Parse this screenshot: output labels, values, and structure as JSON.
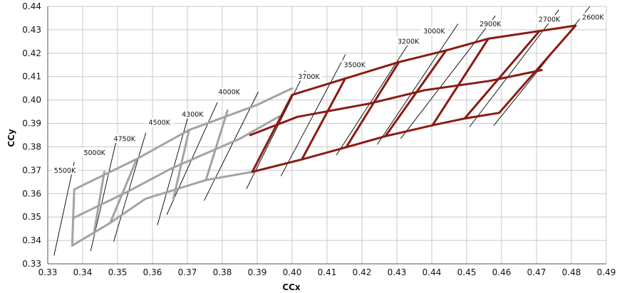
{
  "chart_data": {
    "type": "line",
    "title": "",
    "xlabel": "CCx",
    "ylabel": "CCy",
    "xlim": [
      0.33,
      0.49
    ],
    "ylim": [
      0.33,
      0.44
    ],
    "x_ticks": [
      "0.33",
      "0.34",
      "0.35",
      "0.36",
      "0.37",
      "0.38",
      "0.39",
      "0.40",
      "0.41",
      "0.42",
      "0.43",
      "0.44",
      "0.45",
      "0.46",
      "0.47",
      "0.48",
      "0.49"
    ],
    "y_ticks": [
      "0.33",
      "0.34",
      "0.35",
      "0.36",
      "0.37",
      "0.38",
      "0.39",
      "0.40",
      "0.41",
      "0.42",
      "0.43",
      "0.44"
    ],
    "grid": true,
    "colors": {
      "gray": "#a3a3a3",
      "red": "#8b1a14",
      "line": "#000000",
      "grid": "#c8c8c8"
    },
    "isotherms": [
      {
        "label": "5500K",
        "x": [
          0.3318,
          0.3376
        ],
        "y": [
          0.3335,
          0.3735
        ]
      },
      {
        "label": "5000K",
        "x": [
          0.3423,
          0.3496
        ],
        "y": [
          0.3355,
          0.3825
        ]
      },
      {
        "label": "4750K",
        "x": [
          0.3489,
          0.3581
        ],
        "y": [
          0.3395,
          0.386
        ]
      },
      {
        "label": "4500K",
        "x": [
          0.3614,
          0.3707
        ],
        "y": [
          0.3465,
          0.3955
        ]
      },
      {
        "label": "4300K",
        "x": [
          0.3641,
          0.3786
        ],
        "y": [
          0.351,
          0.399
        ]
      },
      {
        "label": "4000K",
        "x": [
          0.3748,
          0.3903
        ],
        "y": [
          0.357,
          0.4035
        ]
      },
      {
        "label": "3700K",
        "x": [
          0.3869,
          0.4038
        ],
        "y": [
          0.362,
          0.4125
        ]
      },
      {
        "label": "3500K",
        "x": [
          0.3968,
          0.4153
        ],
        "y": [
          0.3675,
          0.4195
        ]
      },
      {
        "label": "3200K",
        "x": [
          0.4127,
          0.4342
        ],
        "y": [
          0.3765,
          0.426
        ]
      },
      {
        "label": "3000K",
        "x": [
          0.4244,
          0.4475
        ],
        "y": [
          0.381,
          0.4325
        ]
      },
      {
        "label": "2900K",
        "x": [
          0.4311,
          0.4582
        ],
        "y": [
          0.3835,
          0.436
        ]
      },
      {
        "label": "2700K",
        "x": [
          0.4508,
          0.4764
        ],
        "y": [
          0.3885,
          0.4385
        ]
      },
      {
        "label": "2600K",
        "x": [
          0.4577,
          0.4853
        ],
        "y": [
          0.389,
          0.44
        ]
      }
    ],
    "label_points": [
      {
        "label": "5500K",
        "x": 0.3349,
        "y": 0.3694
      },
      {
        "label": "5000K",
        "x": 0.3434,
        "y": 0.3769
      },
      {
        "label": "4750K",
        "x": 0.352,
        "y": 0.3829
      },
      {
        "label": "4500K",
        "x": 0.362,
        "y": 0.3899
      },
      {
        "label": "4300K",
        "x": 0.3715,
        "y": 0.3934
      },
      {
        "label": "4000K",
        "x": 0.382,
        "y": 0.4029
      },
      {
        "label": "3700K",
        "x": 0.4048,
        "y": 0.4095
      },
      {
        "label": "3500K",
        "x": 0.4179,
        "y": 0.4145
      },
      {
        "label": "3200K",
        "x": 0.4333,
        "y": 0.4245
      },
      {
        "label": "3000K",
        "x": 0.4407,
        "y": 0.4289
      },
      {
        "label": "2900K",
        "x": 0.4568,
        "y": 0.4319
      },
      {
        "label": "2700K",
        "x": 0.4737,
        "y": 0.4339
      },
      {
        "label": "2600K",
        "x": 0.4862,
        "y": 0.4349
      }
    ],
    "series": [
      {
        "color": "gray",
        "lines": [
          {
            "x": [
              0.3376,
              0.3555,
              0.3705,
              0.3898,
              0.4
            ],
            "y": [
              0.3618,
              0.3748,
              0.3872,
              0.3978,
              0.405
            ]
          },
          {
            "x": [
              0.3372,
              0.3525,
              0.3655,
              0.3852,
              0.3963
            ],
            "y": [
              0.3495,
              0.3605,
              0.3708,
              0.3836,
              0.393
            ]
          },
          {
            "x": [
              0.337,
              0.3479,
              0.358,
              0.3753,
              0.3886
            ],
            "y": [
              0.3378,
              0.3475,
              0.3578,
              0.3658,
              0.3693
            ]
          },
          {
            "x": [
              0.3376,
              0.337
            ],
            "y": [
              0.3618,
              0.3378
            ]
          },
          {
            "x": [
              0.3462,
              0.3432
            ],
            "y": [
              0.3693,
              0.3428
            ]
          },
          {
            "x": [
              0.3555,
              0.3479
            ],
            "y": [
              0.3748,
              0.3475
            ]
          },
          {
            "x": [
              0.3705,
              0.366
            ],
            "y": [
              0.3872,
              0.3578
            ]
          },
          {
            "x": [
              0.3815,
              0.3753
            ],
            "y": [
              0.3955,
              0.3658
            ]
          }
        ]
      },
      {
        "color": "red",
        "lines": [
          {
            "x": [
              0.4,
              0.4152,
              0.4306,
              0.4441,
              0.4562,
              0.4812
            ],
            "y": [
              0.4022,
              0.4092,
              0.4162,
              0.4212,
              0.4262,
              0.4318
            ]
          },
          {
            "x": [
              0.388,
              0.4015,
              0.4222,
              0.438,
              0.4567,
              0.4715
            ],
            "y": [
              0.385,
              0.3928,
              0.3985,
              0.4042,
              0.4082,
              0.4128
            ]
          },
          {
            "x": [
              0.3886,
              0.4028,
              0.4155,
              0.4267,
              0.4402,
              0.4494,
              0.4593
            ],
            "y": [
              0.3693,
              0.3746,
              0.3798,
              0.3845,
              0.3892,
              0.3921,
              0.3945
            ]
          },
          {
            "x": [
              0.4,
              0.3886
            ],
            "y": [
              0.4022,
              0.3693
            ]
          },
          {
            "x": [
              0.4152,
              0.4028
            ],
            "y": [
              0.4092,
              0.3746
            ]
          },
          {
            "x": [
              0.4306,
              0.4155
            ],
            "y": [
              0.4162,
              0.3798
            ]
          },
          {
            "x": [
              0.4441,
              0.4267
            ],
            "y": [
              0.4212,
              0.3845
            ]
          },
          {
            "x": [
              0.4562,
              0.4402
            ],
            "y": [
              0.4262,
              0.3892
            ]
          },
          {
            "x": [
              0.4706,
              0.4494
            ],
            "y": [
              0.429,
              0.3921
            ]
          },
          {
            "x": [
              0.4812,
              0.4593
            ],
            "y": [
              0.4318,
              0.3945
            ]
          }
        ]
      }
    ]
  }
}
